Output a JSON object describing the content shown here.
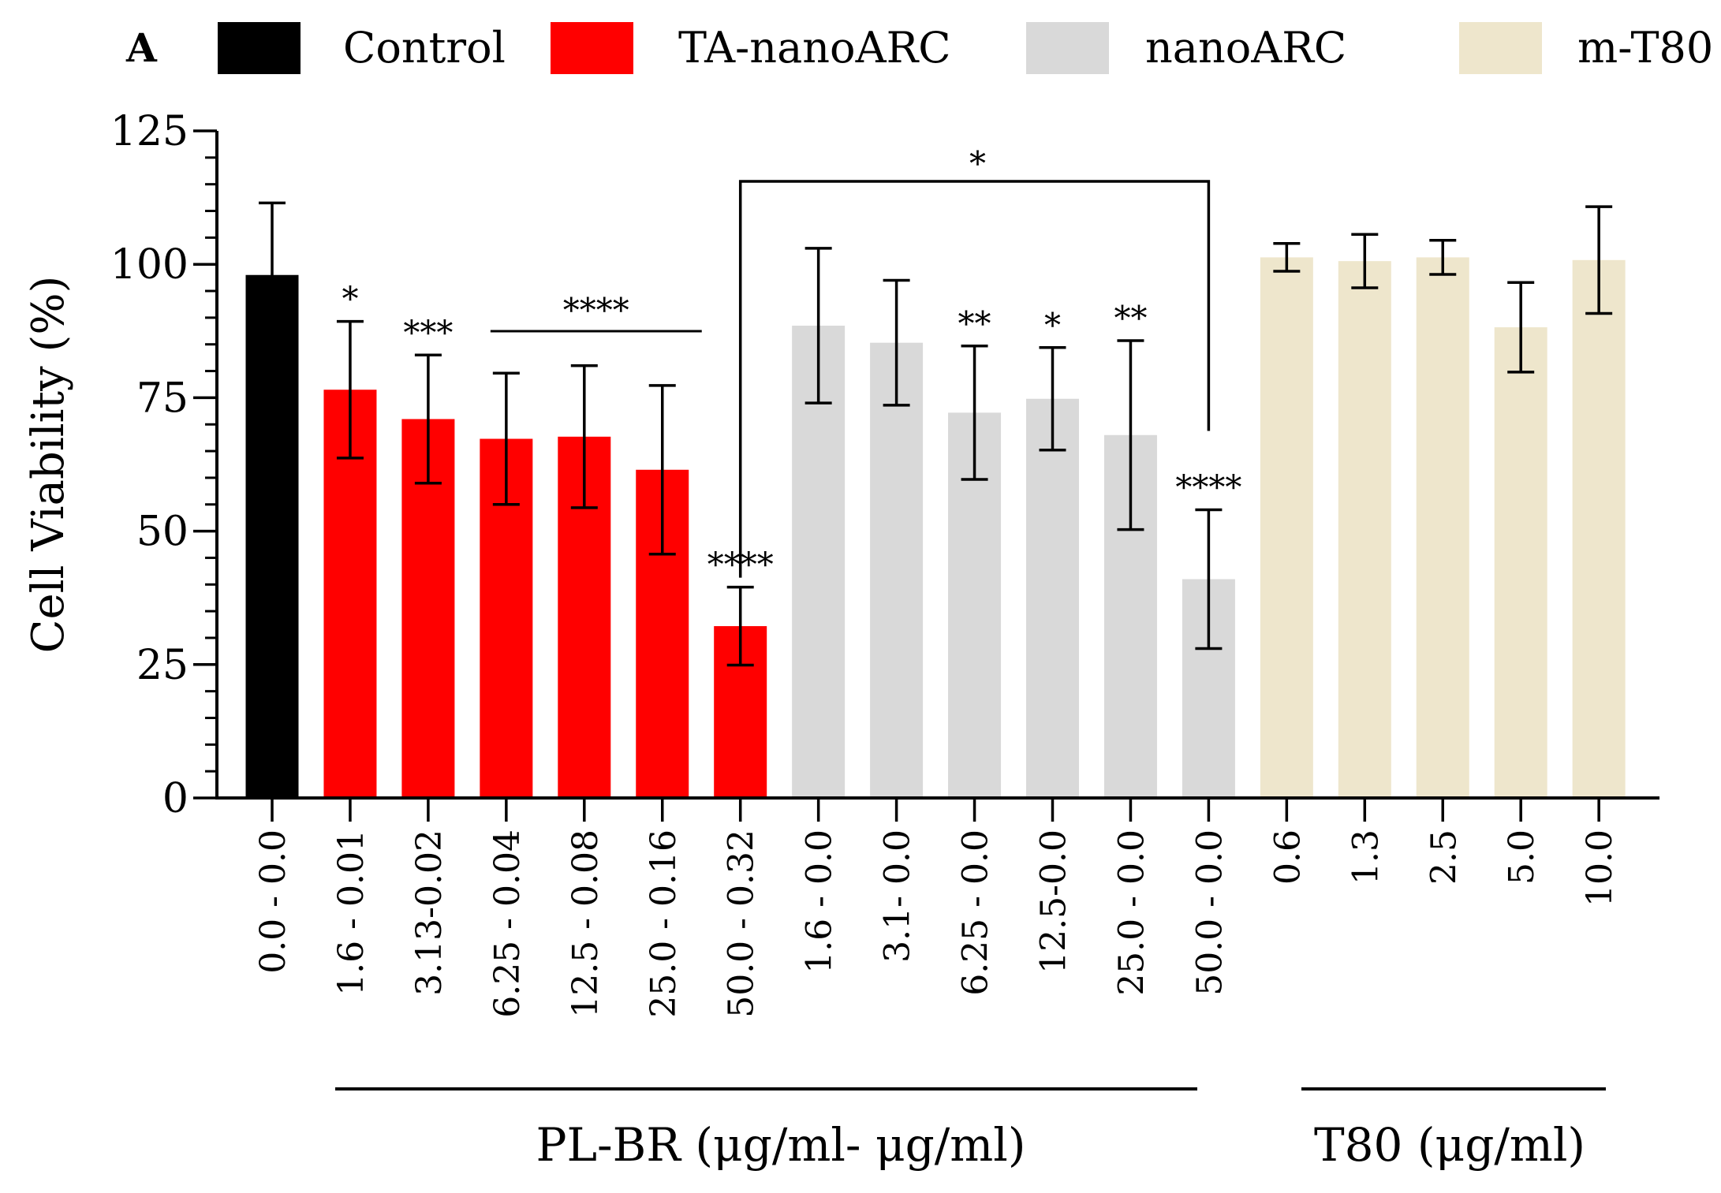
{
  "panel_label": "A",
  "legend": [
    {
      "name": "Control",
      "color": "#000000"
    },
    {
      "name": "TA-nanoARC",
      "color": "#ff0000"
    },
    {
      "name": "nanoARC",
      "color": "#d9d9d9"
    },
    {
      "name": "m-T80",
      "color": "#eee6cc"
    }
  ],
  "chart_data": {
    "type": "bar",
    "title": "",
    "xlabel": "",
    "ylabel": "Cell Viability (%)",
    "ylim": [
      0,
      125
    ],
    "yticks": [
      "0",
      "25",
      "50",
      "75",
      "100",
      "125"
    ],
    "categories": [
      "0.0 - 0.0",
      "1.6 - 0.01",
      "3.13-0.02",
      "6.25 - 0.04",
      "12.5 - 0.08",
      "25.0 - 0.16",
      "50.0 - 0.32",
      "1.6 - 0.0",
      "3.1- 0.0",
      "6.25 - 0.0",
      "12.5-0.0",
      "25.0 - 0.0",
      "50.0 - 0.0",
      "0.6",
      "1.3",
      "2.5",
      "5.0",
      "10.0"
    ],
    "groups": [
      "Control",
      "TA-nanoARC",
      "TA-nanoARC",
      "TA-nanoARC",
      "TA-nanoARC",
      "TA-nanoARC",
      "TA-nanoARC",
      "nanoARC",
      "nanoARC",
      "nanoARC",
      "nanoARC",
      "nanoARC",
      "nanoARC",
      "m-T80",
      "m-T80",
      "m-T80",
      "m-T80",
      "m-T80"
    ],
    "values": [
      98,
      76.5,
      71,
      67.3,
      67.7,
      61.5,
      32.2,
      88.5,
      85.3,
      72.2,
      74.8,
      68,
      41,
      101.3,
      100.6,
      101.3,
      88.2,
      100.8
    ],
    "errors": [
      13.5,
      12.8,
      12,
      12.3,
      13.3,
      15.8,
      7.3,
      14.5,
      11.7,
      12.5,
      9.6,
      17.7,
      13,
      2.6,
      5,
      3.2,
      8.4,
      10
    ],
    "significance": [
      "",
      "*",
      "***",
      "",
      "",
      "",
      "****",
      "",
      "",
      "**",
      "*",
      "**",
      "****",
      "",
      "",
      "",
      "",
      ""
    ],
    "brackets": [
      {
        "label": "****",
        "from_index": 3,
        "to_index": 5
      },
      {
        "label": "*",
        "from_index": 6,
        "to_index": 12
      }
    ],
    "x_groups": [
      {
        "label": "PL-BR (μg/ml- μg/ml)",
        "from_index": 1,
        "to_index": 12
      },
      {
        "label": "T80 (μg/ml)",
        "from_index": 13,
        "to_index": 17
      }
    ]
  }
}
